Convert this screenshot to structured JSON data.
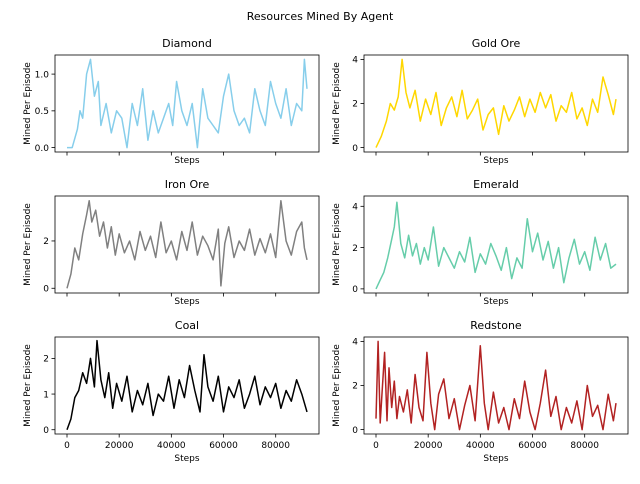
{
  "figure": {
    "title": "Resources Mined By Agent"
  },
  "chart_data": [
    {
      "type": "line",
      "title": "Diamond",
      "xlabel": "Steps",
      "ylabel": "Mined Per Episode",
      "color": "#87ceeb",
      "xlim": [
        -4600,
        96600
      ],
      "ylim": [
        -0.06,
        1.26
      ],
      "xticks": [
        0,
        20000,
        40000,
        60000,
        80000
      ],
      "xtick_labels_visible": false,
      "yticks": [
        0.0,
        0.5,
        1.0
      ],
      "ytick_labels": [
        "0.0",
        "0.5",
        "1.0"
      ],
      "grid": false,
      "series": [
        {
          "x": [
            0,
            2000,
            4000,
            5000,
            6000,
            7500,
            9000,
            10500,
            12000,
            13000,
            15000,
            17000,
            19000,
            21000,
            23000,
            25000,
            27000,
            29000,
            31000,
            33000,
            35000,
            37000,
            39000,
            40500,
            42000,
            44000,
            46000,
            48000,
            50000,
            52000,
            54000,
            56000,
            58000,
            60000,
            62000,
            64000,
            66000,
            68000,
            70000,
            72000,
            74000,
            76000,
            78000,
            80000,
            82000,
            84000,
            86000,
            88000,
            90000,
            91000,
            92000
          ],
          "values": [
            0.0,
            0.0,
            0.25,
            0.5,
            0.4,
            1.0,
            1.2,
            0.7,
            0.9,
            0.3,
            0.6,
            0.2,
            0.5,
            0.4,
            0.0,
            0.6,
            0.3,
            0.8,
            0.1,
            0.5,
            0.2,
            0.4,
            0.6,
            0.3,
            0.9,
            0.5,
            0.3,
            0.6,
            0.0,
            0.8,
            0.4,
            0.3,
            0.2,
            0.7,
            1.0,
            0.5,
            0.3,
            0.4,
            0.2,
            0.8,
            0.5,
            0.3,
            0.9,
            0.6,
            0.4,
            0.8,
            0.3,
            0.6,
            0.5,
            1.2,
            0.8
          ]
        }
      ]
    },
    {
      "type": "line",
      "title": "Gold Ore",
      "xlabel": "Steps",
      "ylabel": "Mined Per Episode",
      "color": "#ffd700",
      "xlim": [
        -4600,
        96600
      ],
      "ylim": [
        -0.2,
        4.2
      ],
      "xticks": [
        0,
        20000,
        40000,
        60000,
        80000
      ],
      "xtick_labels_visible": false,
      "yticks": [
        0,
        2,
        4
      ],
      "ytick_labels": [
        "0",
        "2",
        "4"
      ],
      "grid": false,
      "series": [
        {
          "x": [
            0,
            2000,
            4000,
            5500,
            7000,
            8500,
            10000,
            11500,
            13000,
            15000,
            17000,
            19000,
            21000,
            23000,
            25000,
            27000,
            29000,
            31000,
            33000,
            35000,
            37000,
            39000,
            41000,
            43000,
            45000,
            47000,
            49000,
            51000,
            53000,
            55000,
            57000,
            59000,
            61000,
            63000,
            65000,
            67000,
            69000,
            71000,
            73000,
            75000,
            77000,
            79000,
            81000,
            83000,
            85000,
            87000,
            89000,
            91000,
            92000
          ],
          "values": [
            0.0,
            0.5,
            1.2,
            2.0,
            1.7,
            2.3,
            4.0,
            2.5,
            1.8,
            2.6,
            1.2,
            2.2,
            1.5,
            2.5,
            1.0,
            1.8,
            2.3,
            1.4,
            2.6,
            1.3,
            1.7,
            2.2,
            0.8,
            1.5,
            1.8,
            0.6,
            1.9,
            1.2,
            1.7,
            2.3,
            1.4,
            2.2,
            1.6,
            2.5,
            1.8,
            2.4,
            1.2,
            1.9,
            1.6,
            2.5,
            1.3,
            1.8,
            1.0,
            2.2,
            1.6,
            3.2,
            2.4,
            1.5,
            2.2
          ]
        }
      ]
    },
    {
      "type": "line",
      "title": "Iron Ore",
      "xlabel": "Steps",
      "ylabel": "Mined Per Episode",
      "color": "#808080",
      "xlim": [
        -4600,
        96600
      ],
      "ylim": [
        -0.2,
        3.9
      ],
      "xticks": [
        0,
        20000,
        40000,
        60000,
        80000
      ],
      "xtick_labels_visible": false,
      "yticks": [
        0,
        2
      ],
      "ytick_labels": [
        "0",
        "2"
      ],
      "grid": false,
      "series": [
        {
          "x": [
            0,
            1500,
            3000,
            4500,
            6000,
            7500,
            8500,
            9500,
            11000,
            12500,
            14000,
            15500,
            17000,
            18500,
            20000,
            22000,
            24000,
            26000,
            28000,
            30000,
            32000,
            34000,
            36000,
            38000,
            40000,
            42000,
            44000,
            46000,
            48000,
            50000,
            52000,
            54000,
            56000,
            58000,
            59000,
            60500,
            62000,
            64000,
            66000,
            68000,
            70000,
            72000,
            74000,
            76000,
            78000,
            80000,
            82000,
            84000,
            86000,
            88000,
            90000,
            91000,
            92000
          ],
          "values": [
            0.0,
            0.6,
            1.7,
            1.2,
            2.3,
            3.1,
            3.7,
            2.8,
            3.3,
            2.2,
            2.8,
            1.7,
            2.6,
            1.4,
            2.3,
            1.5,
            2.0,
            1.2,
            2.4,
            1.6,
            2.2,
            1.3,
            2.8,
            1.5,
            2.0,
            1.2,
            2.4,
            1.6,
            2.8,
            1.4,
            2.2,
            1.8,
            1.2,
            2.5,
            0.1,
            1.9,
            2.6,
            1.3,
            2.0,
            1.6,
            2.5,
            1.4,
            2.1,
            1.5,
            2.3,
            1.3,
            3.7,
            2.0,
            1.4,
            2.4,
            2.8,
            1.7,
            1.2
          ]
        }
      ]
    },
    {
      "type": "line",
      "title": "Emerald",
      "xlabel": "Steps",
      "ylabel": "Mined Per Episode",
      "color": "#66cdaa",
      "xlim": [
        -4600,
        96600
      ],
      "ylim": [
        -0.2,
        4.5
      ],
      "xticks": [
        0,
        20000,
        40000,
        60000,
        80000
      ],
      "xtick_labels_visible": false,
      "yticks": [
        0,
        2,
        4
      ],
      "ytick_labels": [
        "0",
        "2",
        "4"
      ],
      "grid": false,
      "series": [
        {
          "x": [
            0,
            1500,
            3000,
            4500,
            6000,
            7000,
            8000,
            9500,
            11000,
            12500,
            14000,
            15500,
            17000,
            18500,
            20000,
            22000,
            24000,
            26000,
            28000,
            30000,
            32000,
            34000,
            36000,
            38000,
            40000,
            42000,
            44000,
            46000,
            48000,
            50000,
            52000,
            54000,
            56000,
            58000,
            60000,
            62000,
            64000,
            66000,
            68000,
            70000,
            72000,
            74000,
            76000,
            78000,
            80000,
            82000,
            84000,
            86000,
            88000,
            90000,
            92000
          ],
          "values": [
            0.0,
            0.4,
            0.8,
            1.5,
            2.4,
            3.0,
            4.2,
            2.2,
            1.5,
            2.6,
            1.6,
            2.2,
            1.2,
            2.0,
            1.4,
            3.0,
            1.1,
            2.0,
            1.5,
            1.0,
            1.8,
            1.3,
            2.5,
            0.8,
            1.7,
            1.2,
            2.2,
            1.6,
            0.9,
            2.0,
            0.5,
            1.5,
            1.0,
            3.4,
            1.8,
            2.7,
            1.4,
            2.3,
            1.0,
            2.0,
            0.3,
            1.5,
            2.4,
            1.2,
            1.8,
            0.9,
            2.5,
            1.4,
            2.2,
            1.0,
            1.2
          ]
        }
      ]
    },
    {
      "type": "line",
      "title": "Coal",
      "xlabel": "Steps",
      "ylabel": "Mined Per Episode",
      "color": "#000000",
      "xlim": [
        -4600,
        96600
      ],
      "ylim": [
        -0.12,
        2.6
      ],
      "xticks": [
        0,
        20000,
        40000,
        60000,
        80000
      ],
      "xtick_labels": [
        "0",
        "20000",
        "40000",
        "60000",
        "80000"
      ],
      "xtick_labels_visible": true,
      "yticks": [
        0,
        1,
        2
      ],
      "ytick_labels": [
        "0",
        "1",
        "2"
      ],
      "grid": false,
      "series": [
        {
          "x": [
            0,
            1500,
            3000,
            4500,
            6000,
            7500,
            9000,
            10500,
            11500,
            13000,
            14500,
            16000,
            17500,
            19000,
            21000,
            23000,
            25000,
            27000,
            29000,
            31000,
            33000,
            35000,
            37000,
            39000,
            41000,
            43000,
            45000,
            47000,
            49000,
            51000,
            52500,
            54000,
            56000,
            58000,
            60000,
            62000,
            64000,
            66000,
            68000,
            70000,
            72000,
            74000,
            76000,
            78000,
            80000,
            82000,
            84000,
            86000,
            88000,
            90000,
            92000
          ],
          "values": [
            0.0,
            0.3,
            0.9,
            1.1,
            1.6,
            1.3,
            2.0,
            1.2,
            2.5,
            1.4,
            0.9,
            1.6,
            0.6,
            1.3,
            0.8,
            1.5,
            0.5,
            1.1,
            0.7,
            1.3,
            0.4,
            1.0,
            0.8,
            1.5,
            0.6,
            1.4,
            0.9,
            1.8,
            1.1,
            0.5,
            2.1,
            1.2,
            0.8,
            1.5,
            0.5,
            1.2,
            0.9,
            1.4,
            0.6,
            1.0,
            1.5,
            0.7,
            1.2,
            0.9,
            1.3,
            0.6,
            1.1,
            0.8,
            1.4,
            1.0,
            0.5
          ]
        }
      ]
    },
    {
      "type": "line",
      "title": "Redstone",
      "xlabel": "Steps",
      "ylabel": "Mined Per Episode",
      "color": "#b22222",
      "xlim": [
        -4600,
        96600
      ],
      "ylim": [
        -0.2,
        4.2
      ],
      "xticks": [
        0,
        20000,
        40000,
        60000,
        80000
      ],
      "xtick_labels": [
        "0",
        "20000",
        "40000",
        "60000",
        "80000"
      ],
      "xtick_labels_visible": true,
      "yticks": [
        0,
        2,
        4
      ],
      "ytick_labels": [
        "0",
        "2",
        "4"
      ],
      "grid": false,
      "series": [
        {
          "x": [
            0,
            800,
            1600,
            2500,
            3300,
            4200,
            5000,
            6000,
            7000,
            8000,
            9000,
            10500,
            12000,
            13500,
            15000,
            16500,
            18000,
            19500,
            21000,
            22500,
            24000,
            26000,
            28000,
            30000,
            32000,
            34000,
            36000,
            38000,
            40000,
            41500,
            43000,
            45000,
            47000,
            49000,
            51000,
            53000,
            55000,
            57000,
            59000,
            61000,
            63000,
            65000,
            67000,
            69000,
            71000,
            73000,
            75000,
            77000,
            79000,
            81000,
            83000,
            85000,
            87000,
            89000,
            91000,
            92000
          ],
          "values": [
            0.5,
            4.0,
            0.3,
            2.0,
            3.5,
            0.4,
            2.8,
            1.0,
            2.2,
            0.5,
            1.5,
            0.8,
            1.8,
            0.3,
            2.5,
            1.0,
            0.4,
            3.5,
            1.2,
            0.0,
            1.6,
            2.3,
            0.5,
            1.4,
            0.0,
            1.1,
            2.0,
            0.4,
            3.8,
            1.2,
            0.0,
            1.7,
            0.3,
            1.0,
            0.0,
            1.4,
            0.5,
            2.2,
            0.8,
            0.0,
            1.2,
            2.7,
            0.6,
            1.5,
            0.0,
            1.0,
            0.3,
            1.3,
            0.0,
            2.0,
            0.6,
            1.1,
            0.0,
            1.6,
            0.4,
            1.2
          ]
        }
      ]
    }
  ]
}
